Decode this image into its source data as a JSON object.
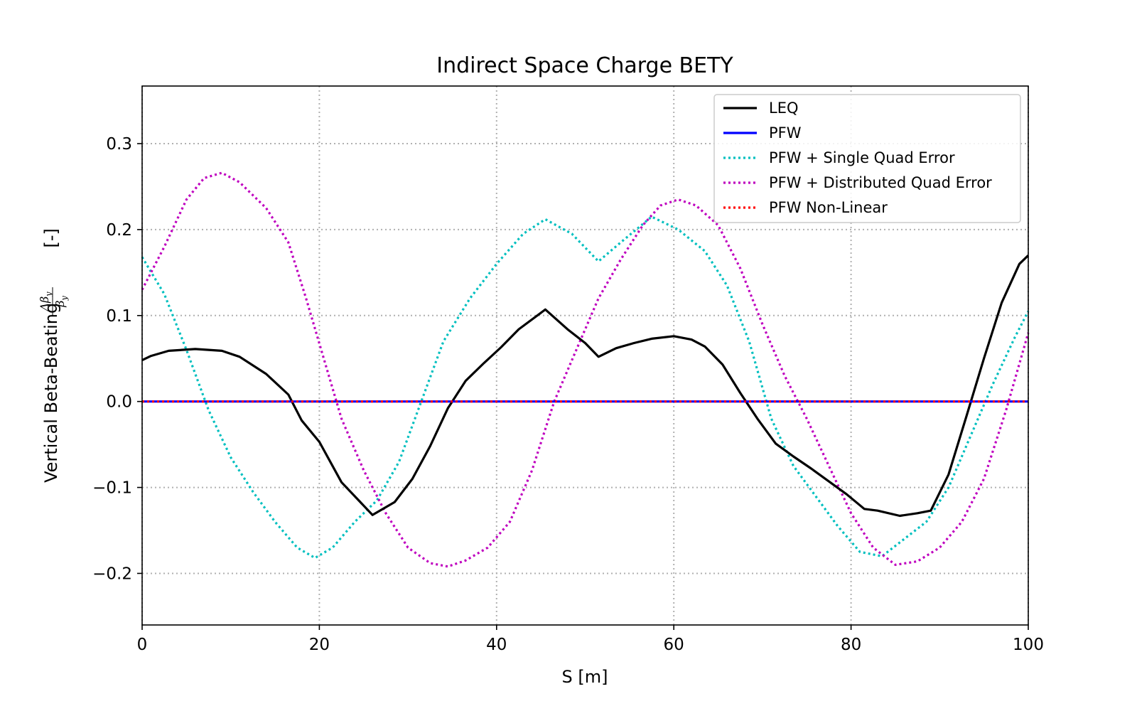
{
  "chart_data": {
    "type": "line",
    "title": "Indirect Space Charge BETY",
    "xlabel": "S [m]",
    "ylabel_prefix": "Vertical Beta-Beating ",
    "ylabel_frac_num": "Δβ",
    "ylabel_frac_num_sub": "y",
    "ylabel_frac_den": "β",
    "ylabel_frac_den_sub": "y",
    "ylabel_suffix": " [-]",
    "xlim": [
      0,
      100
    ],
    "ylim": [
      -0.26,
      0.367
    ],
    "xticks": [
      0,
      20,
      40,
      60,
      80,
      100
    ],
    "xtick_labels": [
      "0",
      "20",
      "40",
      "60",
      "80",
      "100"
    ],
    "yticks": [
      -0.2,
      -0.1,
      0.0,
      0.1,
      0.2,
      0.3
    ],
    "ytick_labels": [
      "−0.2",
      "−0.1",
      "0.0",
      "0.1",
      "0.2",
      "0.3"
    ],
    "grid": true,
    "legend_position": "top-right",
    "series": [
      {
        "name": "LEQ",
        "color": "#000000",
        "style": "solid",
        "x": [
          0,
          1,
          3,
          6,
          9,
          11,
          14,
          16.5,
          18,
          20,
          22.5,
          26,
          28.5,
          30.5,
          32.5,
          34.5,
          36.5,
          38.5,
          40.5,
          42.5,
          45.5,
          48,
          50,
          51.5,
          53.5,
          55.5,
          57.5,
          60,
          62,
          63.5,
          65.5,
          67.5,
          69.5,
          71.5,
          73.5,
          75.5,
          77.5,
          79.5,
          81.5,
          83,
          85.5,
          87.5,
          89,
          91,
          93,
          95,
          97,
          99,
          100
        ],
        "y": [
          0.048,
          0.053,
          0.059,
          0.061,
          0.059,
          0.052,
          0.032,
          0.008,
          -0.022,
          -0.047,
          -0.094,
          -0.132,
          -0.117,
          -0.09,
          -0.052,
          -0.008,
          0.024,
          0.044,
          0.063,
          0.084,
          0.107,
          0.084,
          0.068,
          0.052,
          0.062,
          0.068,
          0.073,
          0.076,
          0.072,
          0.064,
          0.043,
          0.01,
          -0.021,
          -0.049,
          -0.064,
          -0.078,
          -0.093,
          -0.108,
          -0.125,
          -0.127,
          -0.133,
          -0.13,
          -0.127,
          -0.085,
          -0.018,
          0.05,
          0.115,
          0.16,
          0.17
        ]
      },
      {
        "name": "PFW",
        "color": "#0000ff",
        "style": "solid",
        "x": [
          0,
          100
        ],
        "y": [
          0.0,
          0.0
        ]
      },
      {
        "name": "PFW + Single Quad Error",
        "color": "#00bfbf",
        "style": "dotted",
        "x": [
          0,
          2.5,
          5,
          7.5,
          10,
          12.5,
          15,
          17.5,
          19.5,
          21.5,
          24,
          26.5,
          29,
          31.5,
          34,
          37,
          40,
          43,
          45.5,
          48.5,
          51.5,
          54,
          57.5,
          60.5,
          63.5,
          66,
          68.5,
          71,
          73.5,
          76,
          78.5,
          81,
          83.5,
          86,
          88.5,
          91,
          93.5,
          96,
          98.5,
          100
        ],
        "y": [
          0.168,
          0.125,
          0.06,
          -0.01,
          -0.065,
          -0.105,
          -0.14,
          -0.17,
          -0.182,
          -0.17,
          -0.14,
          -0.115,
          -0.07,
          0.0,
          0.07,
          0.12,
          0.16,
          0.195,
          0.212,
          0.195,
          0.163,
          0.185,
          0.215,
          0.2,
          0.175,
          0.135,
          0.07,
          -0.02,
          -0.075,
          -0.11,
          -0.145,
          -0.175,
          -0.18,
          -0.16,
          -0.14,
          -0.1,
          -0.04,
          0.02,
          0.075,
          0.105
        ]
      },
      {
        "name": "PFW + Distributed Quad Error",
        "color": "#bf00bf",
        "style": "dotted",
        "x": [
          0,
          2.5,
          5,
          7,
          9,
          11,
          14,
          16.5,
          18.5,
          20.5,
          22.5,
          25,
          27.5,
          30,
          32.5,
          34.5,
          36.5,
          39,
          41.5,
          44,
          46.5,
          49,
          51.5,
          54,
          56.5,
          58.5,
          60.5,
          62.5,
          65,
          67.5,
          70,
          72.5,
          75,
          77.5,
          80,
          82.5,
          85,
          87.5,
          90,
          92.5,
          95,
          97.5,
          100
        ],
        "y": [
          0.13,
          0.18,
          0.235,
          0.26,
          0.266,
          0.255,
          0.225,
          0.185,
          0.12,
          0.05,
          -0.02,
          -0.08,
          -0.13,
          -0.17,
          -0.188,
          -0.192,
          -0.185,
          -0.17,
          -0.14,
          -0.08,
          0.0,
          0.06,
          0.12,
          0.165,
          0.205,
          0.228,
          0.235,
          0.228,
          0.205,
          0.155,
          0.09,
          0.03,
          -0.02,
          -0.075,
          -0.13,
          -0.17,
          -0.19,
          -0.186,
          -0.17,
          -0.14,
          -0.09,
          -0.01,
          0.08
        ]
      },
      {
        "name": "PFW Non-Linear",
        "color": "#ff0000",
        "style": "dotted",
        "x": [
          0,
          100
        ],
        "y": [
          0.0,
          0.0
        ]
      }
    ]
  }
}
